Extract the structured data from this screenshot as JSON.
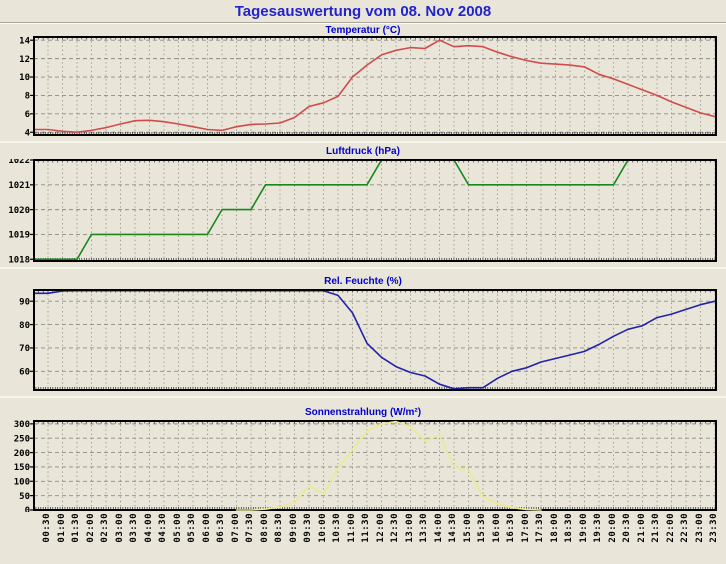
{
  "page": {
    "title": "Tagesauswertung vom 08. Nov 2008"
  },
  "colors": {
    "background": "#e9e6d9",
    "page_title": "#2323cb",
    "chart_title": "#0000cc",
    "grid": "#8c8c84",
    "axis": "#000000",
    "temperature_line": "#d04c4c",
    "pressure_line": "#18891a",
    "humidity_line": "#2222aa",
    "sunshine_line": "#eaea8e"
  },
  "chart_data": {
    "type": "line",
    "x_tick_interval_minutes": 30,
    "grid": true,
    "legend_position": "none",
    "categories": [
      "00:30",
      "01:00",
      "01:30",
      "02:00",
      "02:30",
      "03:00",
      "03:30",
      "04:00",
      "04:30",
      "05:00",
      "05:30",
      "06:00",
      "06:30",
      "07:00",
      "07:30",
      "08:00",
      "08:30",
      "09:00",
      "09:30",
      "10:00",
      "10:30",
      "11:00",
      "11:30",
      "12:00",
      "12:30",
      "13:00",
      "13:30",
      "14:00",
      "14:30",
      "15:00",
      "15:30",
      "16:00",
      "16:30",
      "17:00",
      "17:30",
      "18:00",
      "18:30",
      "19:00",
      "19:30",
      "20:00",
      "20:30",
      "21:00",
      "21:30",
      "22:00",
      "22:30",
      "23:00",
      "23:30"
    ],
    "charts": [
      {
        "id": "temperature",
        "title": "Temperatur (°C)",
        "color": "#d04c4c",
        "y_ticks": [
          4,
          6,
          8,
          10,
          12,
          14
        ],
        "ylim": [
          3.7,
          14.35
        ],
        "values": [
          4.3,
          4.1,
          4.0,
          4.2,
          4.5,
          4.9,
          5.25,
          5.3,
          5.15,
          4.9,
          4.6,
          4.3,
          4.2,
          4.6,
          4.85,
          4.9,
          5.0,
          5.6,
          6.8,
          7.2,
          7.9,
          10.0,
          11.3,
          12.4,
          12.9,
          13.2,
          13.1,
          14.0,
          13.3,
          13.4,
          13.3,
          12.7,
          12.2,
          11.8,
          11.5,
          11.4,
          11.3,
          11.1,
          10.3,
          9.8,
          9.2,
          8.6,
          8.0,
          7.3,
          6.7,
          6.1,
          5.7
        ]
      },
      {
        "id": "pressure",
        "title": "Luftdruck (hPa)",
        "color": "#18891a",
        "y_ticks": [
          1018,
          1019,
          1020,
          1021,
          1022
        ],
        "ylim": [
          1017.93,
          1022
        ],
        "values": [
          1018,
          1018,
          1018,
          1019,
          1019,
          1019,
          1019,
          1019,
          1019,
          1019,
          1019,
          1019,
          1020,
          1020,
          1020,
          1021,
          1021,
          1021,
          1021,
          1021,
          1021,
          1021,
          1021,
          1022,
          1022,
          1022,
          1022,
          1022,
          1022,
          1021,
          1021,
          1021,
          1021,
          1021,
          1021,
          1021,
          1021,
          1021,
          1021,
          1021,
          1022,
          1022,
          1022,
          1022,
          1022,
          1022,
          1022
        ]
      },
      {
        "id": "humidity",
        "title": "Rel. Feuchte (%)",
        "color": "#2222aa",
        "y_ticks": [
          60,
          70,
          80,
          90
        ],
        "ylim": [
          52,
          94.8
        ],
        "values": [
          93.4,
          94.4,
          94.5,
          94.5,
          94.5,
          94.5,
          94.5,
          94.5,
          94.5,
          94.5,
          94.5,
          94.5,
          94.5,
          94.5,
          94.5,
          94.5,
          94.5,
          94.5,
          94.5,
          94.5,
          92.5,
          85,
          72,
          66,
          62,
          59.5,
          58,
          54.5,
          52.5,
          53,
          53,
          57,
          60,
          61.5,
          64,
          65.5,
          67,
          68.5,
          71.5,
          75,
          78,
          79.5,
          83,
          84.5,
          86.5,
          88.5,
          90
        ]
      },
      {
        "id": "sunshine",
        "title": "Sonnenstrahlung (W/m²)",
        "color": "#eaea8e",
        "y_ticks": [
          0,
          50,
          100,
          150,
          200,
          250,
          300
        ],
        "ylim": [
          0,
          310
        ],
        "values": [
          null,
          null,
          null,
          null,
          null,
          null,
          null,
          null,
          null,
          null,
          null,
          null,
          null,
          0,
          0,
          3,
          10,
          25,
          85,
          55,
          145,
          210,
          275,
          300,
          308,
          290,
          240,
          262,
          150,
          140,
          45,
          22,
          8,
          2,
          0,
          null,
          null,
          null,
          null,
          null,
          null,
          null,
          null,
          null,
          null,
          null,
          null
        ]
      }
    ]
  }
}
